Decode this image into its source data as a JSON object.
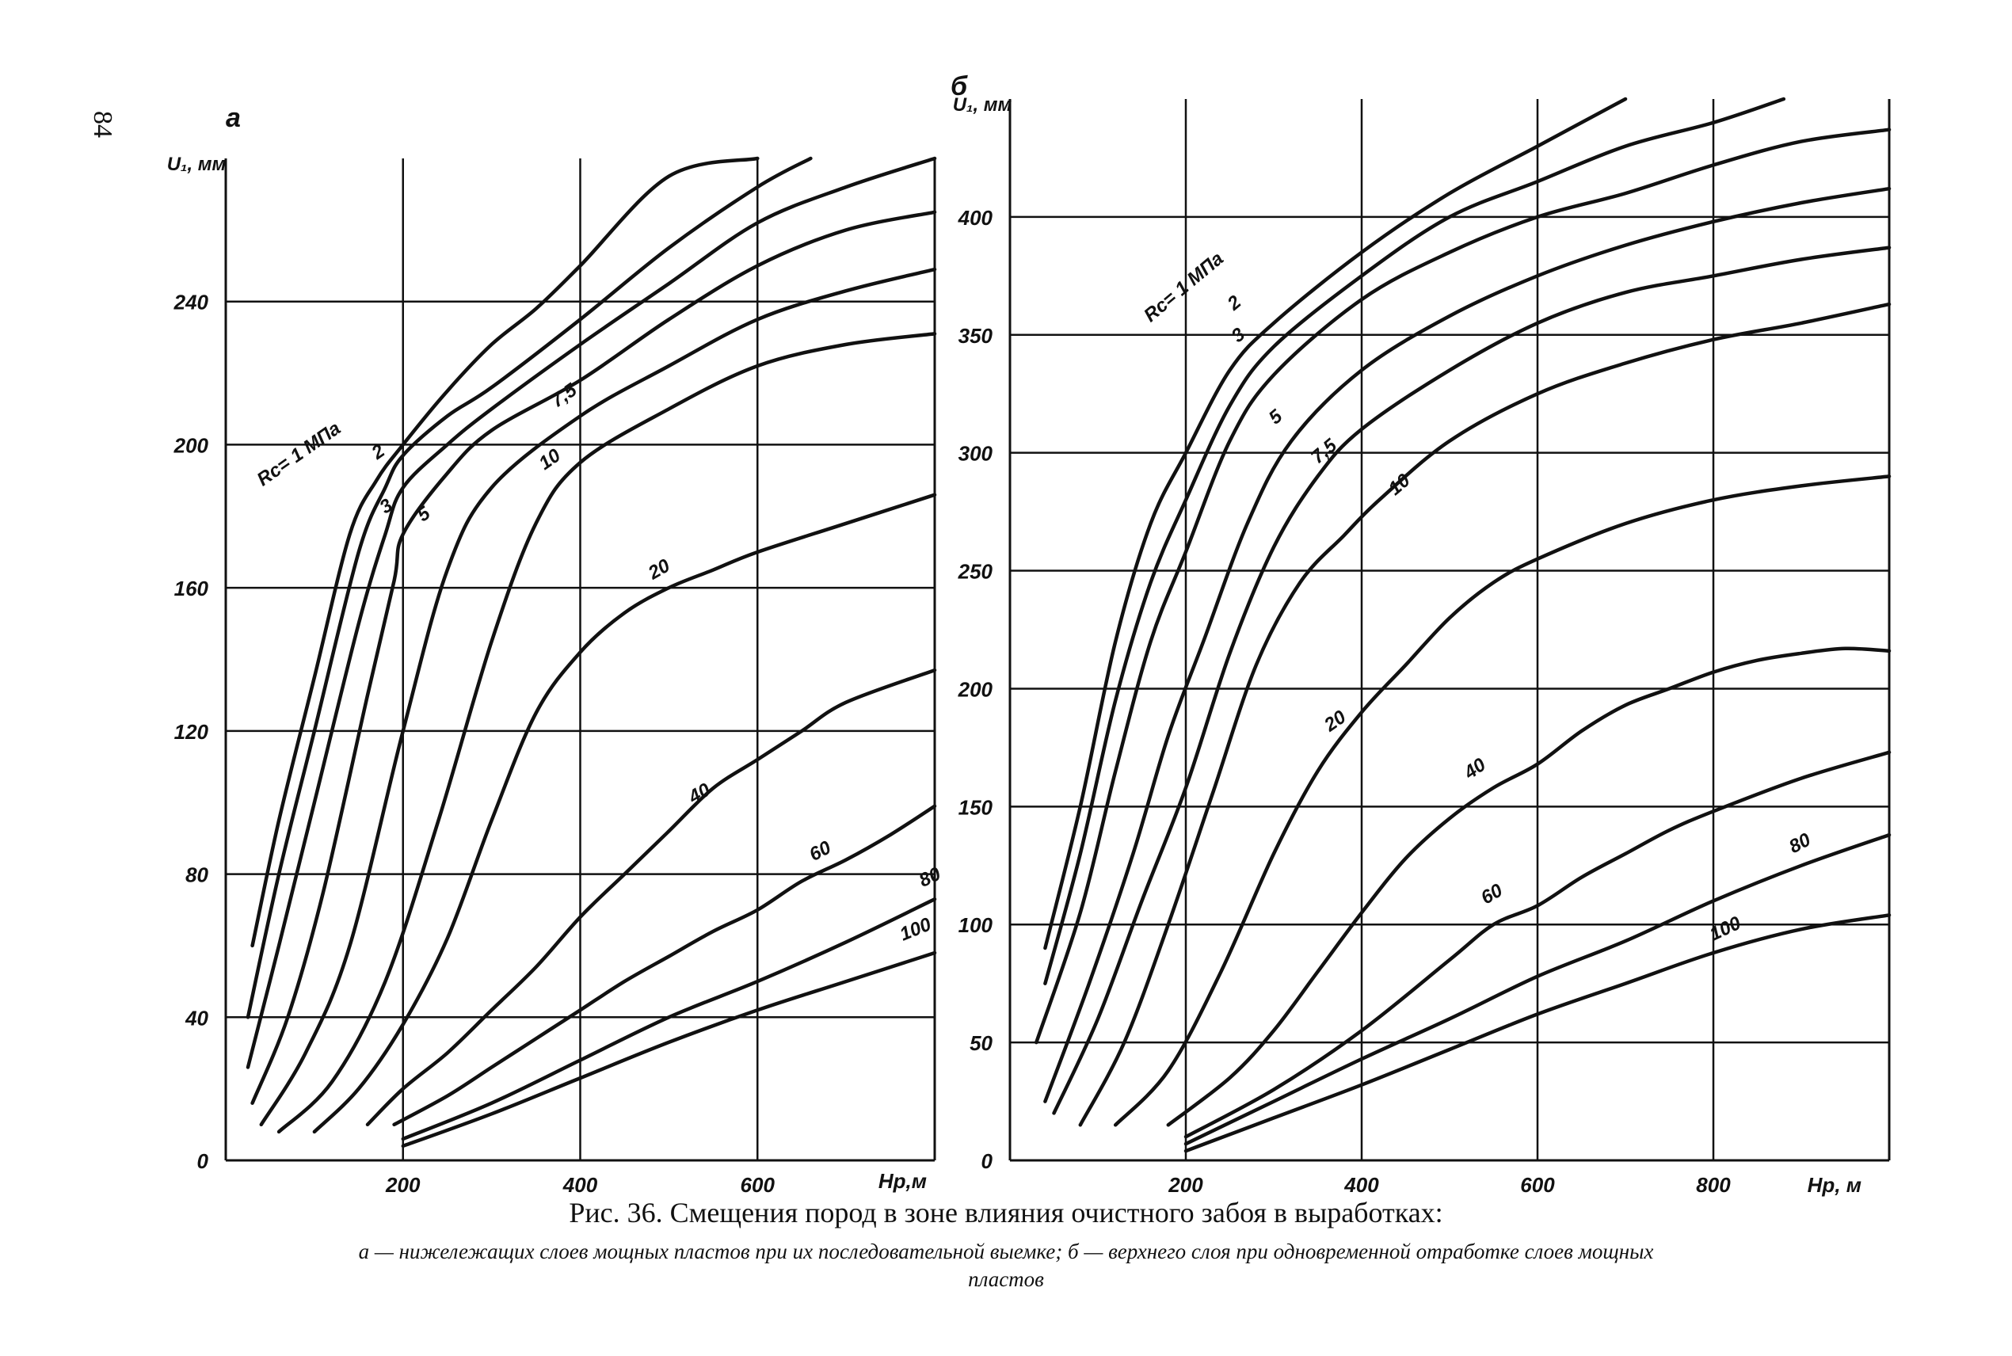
{
  "page_number": "84",
  "caption": {
    "title": "Рис. 36. Смещения пород в зоне влияния очистного забоя в выработках:",
    "line1": "а — нижележащих слоев мощных пластов при их последовательной выемке; б — верхнего слоя при одновременной отработке слоев мощных",
    "line2": "пластов"
  },
  "chart_data": [
    {
      "panel_label": "а",
      "type": "line",
      "xlabel": "Hp,м",
      "ylabel": "U₁, мм",
      "xlim": [
        0,
        800
      ],
      "ylim": [
        0,
        280
      ],
      "x_ticks": [
        "200",
        "400",
        "600"
      ],
      "x_tick_values": [
        200,
        400,
        600
      ],
      "y_ticks": [
        "0",
        "40",
        "80",
        "120",
        "160",
        "200",
        "240"
      ],
      "y_tick_values": [
        0,
        40,
        80,
        120,
        160,
        200,
        240
      ],
      "grid": true,
      "series": [
        {
          "name": "Rc= 1 МПа",
          "x": [
            30,
            60,
            100,
            140,
            170,
            200,
            250,
            300,
            350,
            400,
            500,
            600
          ],
          "y": [
            60,
            95,
            135,
            175,
            190,
            200,
            215,
            228,
            238,
            250,
            275,
            280
          ]
        },
        {
          "name": "2",
          "x": [
            25,
            60,
            100,
            150,
            180,
            200,
            250,
            300,
            400,
            500,
            600,
            660
          ],
          "y": [
            40,
            80,
            120,
            170,
            188,
            197,
            208,
            216,
            235,
            255,
            272,
            280
          ]
        },
        {
          "name": "3",
          "x": [
            25,
            60,
            100,
            150,
            180,
            200,
            250,
            300,
            400,
            500,
            600,
            700,
            800
          ],
          "y": [
            26,
            60,
            100,
            150,
            175,
            188,
            200,
            210,
            228,
            245,
            262,
            272,
            280
          ]
        },
        {
          "name": "5",
          "x": [
            30,
            70,
            110,
            160,
            190,
            200,
            250,
            300,
            400,
            500,
            600,
            700,
            800
          ],
          "y": [
            16,
            40,
            75,
            130,
            162,
            175,
            192,
            204,
            218,
            235,
            250,
            260,
            265
          ]
        },
        {
          "name": "7,5",
          "x": [
            40,
            90,
            140,
            200,
            250,
            300,
            400,
            500,
            600,
            700,
            800
          ],
          "y": [
            10,
            30,
            60,
            120,
            165,
            188,
            208,
            222,
            235,
            243,
            249
          ]
        },
        {
          "name": "10",
          "x": [
            60,
            120,
            180,
            240,
            300,
            350,
            400,
            500,
            600,
            700,
            800
          ],
          "y": [
            8,
            22,
            50,
            95,
            145,
            178,
            195,
            210,
            222,
            228,
            231
          ]
        },
        {
          "name": "20",
          "x": [
            100,
            150,
            200,
            250,
            300,
            350,
            400,
            450,
            500,
            550,
            600,
            700,
            800
          ],
          "y": [
            8,
            20,
            38,
            62,
            95,
            125,
            142,
            153,
            160,
            165,
            170,
            178,
            186
          ]
        },
        {
          "name": "40",
          "x": [
            160,
            200,
            250,
            300,
            350,
            400,
            450,
            500,
            550,
            600,
            650,
            700,
            800
          ],
          "y": [
            10,
            20,
            30,
            42,
            54,
            68,
            80,
            92,
            104,
            112,
            120,
            128,
            137
          ]
        },
        {
          "name": "60",
          "x": [
            190,
            250,
            300,
            350,
            400,
            450,
            500,
            550,
            600,
            650,
            700,
            750,
            800
          ],
          "y": [
            10,
            18,
            26,
            34,
            42,
            50,
            57,
            64,
            70,
            78,
            84,
            91,
            99
          ]
        },
        {
          "name": "80",
          "x": [
            200,
            300,
            400,
            500,
            600,
            700,
            800
          ],
          "y": [
            6,
            16,
            28,
            40,
            50,
            61,
            73
          ]
        },
        {
          "name": "100",
          "x": [
            200,
            300,
            400,
            500,
            600,
            700,
            800
          ],
          "y": [
            4,
            13,
            23,
            33,
            42,
            50,
            58
          ]
        }
      ]
    },
    {
      "panel_label": "б",
      "type": "line",
      "xlabel": "Hp, м",
      "ylabel": "U₁, мм",
      "xlim": [
        0,
        1000
      ],
      "ylim": [
        0,
        450
      ],
      "x_ticks": [
        "200",
        "400",
        "600",
        "800"
      ],
      "x_tick_values": [
        200,
        400,
        600,
        800
      ],
      "y_ticks": [
        "0",
        "50",
        "100",
        "150",
        "200",
        "250",
        "300",
        "350",
        "400"
      ],
      "y_tick_values": [
        0,
        50,
        100,
        150,
        200,
        250,
        300,
        350,
        400
      ],
      "grid": true,
      "series": [
        {
          "name": "Rc= 1 МПа",
          "x": [
            40,
            80,
            120,
            160,
            200,
            250,
            300,
            400,
            500,
            600,
            700
          ],
          "y": [
            90,
            150,
            220,
            270,
            300,
            335,
            355,
            385,
            410,
            430,
            450
          ]
        },
        {
          "name": "2",
          "x": [
            40,
            80,
            120,
            160,
            200,
            250,
            300,
            400,
            500,
            600,
            700,
            800,
            880
          ],
          "y": [
            75,
            130,
            195,
            245,
            280,
            320,
            345,
            375,
            400,
            415,
            430,
            440,
            450
          ]
        },
        {
          "name": "3",
          "x": [
            30,
            80,
            120,
            160,
            200,
            250,
            300,
            400,
            500,
            600,
            700,
            800,
            900,
            1000
          ],
          "y": [
            50,
            105,
            165,
            220,
            258,
            305,
            333,
            365,
            385,
            400,
            410,
            422,
            432,
            437
          ]
        },
        {
          "name": "5",
          "x": [
            40,
            90,
            140,
            180,
            220,
            270,
            320,
            400,
            500,
            600,
            700,
            800,
            900,
            1000
          ],
          "y": [
            25,
            75,
            130,
            180,
            220,
            270,
            305,
            335,
            358,
            375,
            388,
            398,
            406,
            412
          ]
        },
        {
          "name": "7,5",
          "x": [
            50,
            100,
            150,
            200,
            250,
            300,
            350,
            400,
            500,
            600,
            700,
            800,
            900,
            1000
          ],
          "y": [
            20,
            60,
            110,
            158,
            215,
            260,
            290,
            310,
            335,
            355,
            368,
            375,
            382,
            387
          ]
        },
        {
          "name": "10",
          "x": [
            80,
            130,
            180,
            230,
            280,
            330,
            380,
            420,
            500,
            600,
            700,
            800,
            900,
            1000
          ],
          "y": [
            15,
            50,
            100,
            155,
            210,
            245,
            265,
            280,
            305,
            325,
            338,
            348,
            355,
            363
          ]
        },
        {
          "name": "20",
          "x": [
            120,
            180,
            240,
            300,
            350,
            400,
            450,
            500,
            550,
            600,
            700,
            800,
            900,
            1000
          ],
          "y": [
            15,
            38,
            80,
            130,
            165,
            190,
            210,
            230,
            245,
            255,
            270,
            280,
            286,
            290
          ]
        },
        {
          "name": "40",
          "x": [
            180,
            250,
            300,
            350,
            400,
            450,
            500,
            550,
            600,
            650,
            700,
            750,
            800,
            850,
            900,
            950,
            1000
          ],
          "y": [
            15,
            35,
            55,
            80,
            105,
            128,
            145,
            158,
            168,
            182,
            193,
            200,
            207,
            212,
            215,
            217,
            216
          ]
        },
        {
          "name": "60",
          "x": [
            200,
            300,
            400,
            500,
            550,
            600,
            650,
            700,
            750,
            800,
            900,
            1000
          ],
          "y": [
            10,
            30,
            55,
            85,
            100,
            108,
            120,
            130,
            140,
            148,
            162,
            173
          ]
        },
        {
          "name": "80",
          "x": [
            200,
            300,
            400,
            500,
            600,
            700,
            800,
            900,
            1000
          ],
          "y": [
            7,
            25,
            43,
            60,
            78,
            93,
            110,
            125,
            138
          ]
        },
        {
          "name": "100",
          "x": [
            200,
            300,
            400,
            500,
            600,
            700,
            800,
            900,
            1000
          ],
          "y": [
            4,
            18,
            32,
            47,
            62,
            75,
            88,
            98,
            104
          ]
        }
      ]
    }
  ]
}
